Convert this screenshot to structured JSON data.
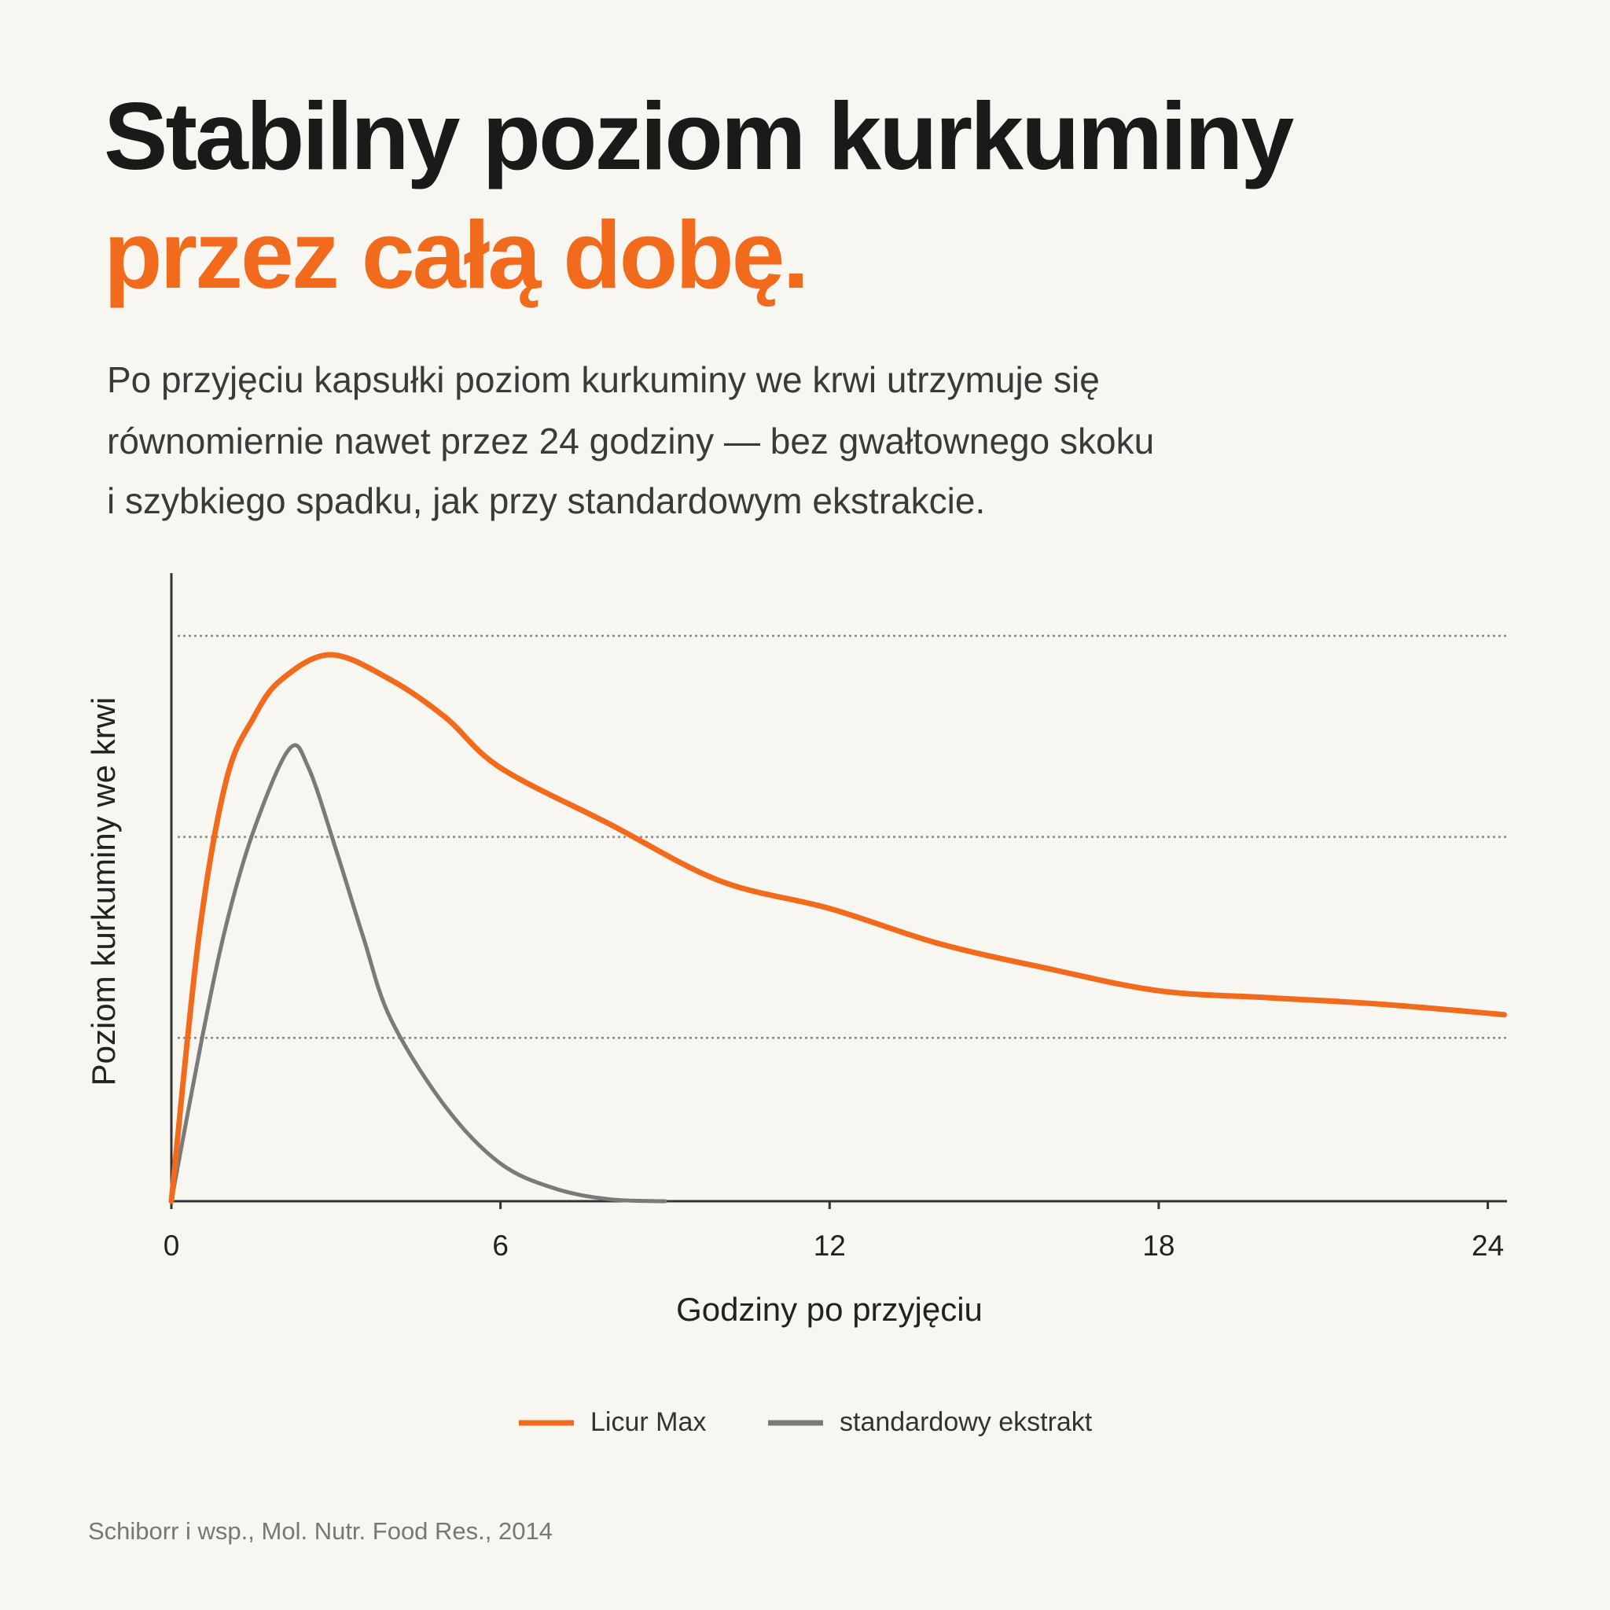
{
  "chart_data": {
    "type": "line",
    "title": "Stabilny poziom kurkuminy",
    "title_accent": "przez całą dobę.",
    "subtitle": [
      "Po przyjęciu kapsułki poziom kurkuminy we krwi utrzymuje się",
      "równomiernie nawet przez 24 godziny — bez gwałtownego skoku",
      "i szybkiego spadku, jak przy standardowym ekstrakcie."
    ],
    "xlabel": "Godziny po przyjęciu",
    "ylabel": "Poziom kurkuminy we krwi",
    "xlim": [
      0,
      24.35
    ],
    "xticks": [
      0,
      6,
      12,
      18,
      24
    ],
    "ylim": [
      0,
      100
    ],
    "ygrid": [
      26,
      58,
      90
    ],
    "grid": true,
    "legend": "bottom",
    "series": [
      {
        "name": "Licur Max",
        "color": "#f26b1d",
        "x": [
          0,
          0.5,
          1,
          1.5,
          2,
          2.9,
          4,
          5,
          6,
          8,
          10,
          12,
          14,
          16,
          18,
          20,
          22,
          24.3
        ],
        "values": [
          0,
          42,
          67,
          77,
          83,
          87,
          83,
          77,
          69,
          60,
          51,
          46.6,
          41,
          37,
          33.5,
          32.4,
          31.4,
          29.7
        ]
      },
      {
        "name": "standardowy ekstrakt",
        "color": "#7a7a7a",
        "x": [
          0,
          0.56,
          1,
          1.5,
          2.15,
          2.5,
          3,
          3.5,
          4,
          5,
          6,
          7,
          8,
          9
        ],
        "values": [
          0,
          26,
          44,
          59,
          72,
          69,
          56,
          42,
          29,
          15,
          6,
          2,
          0.3,
          0
        ]
      }
    ],
    "source": "Schiborr i wsp., Mol. Nutr. Food Res., 2014"
  }
}
